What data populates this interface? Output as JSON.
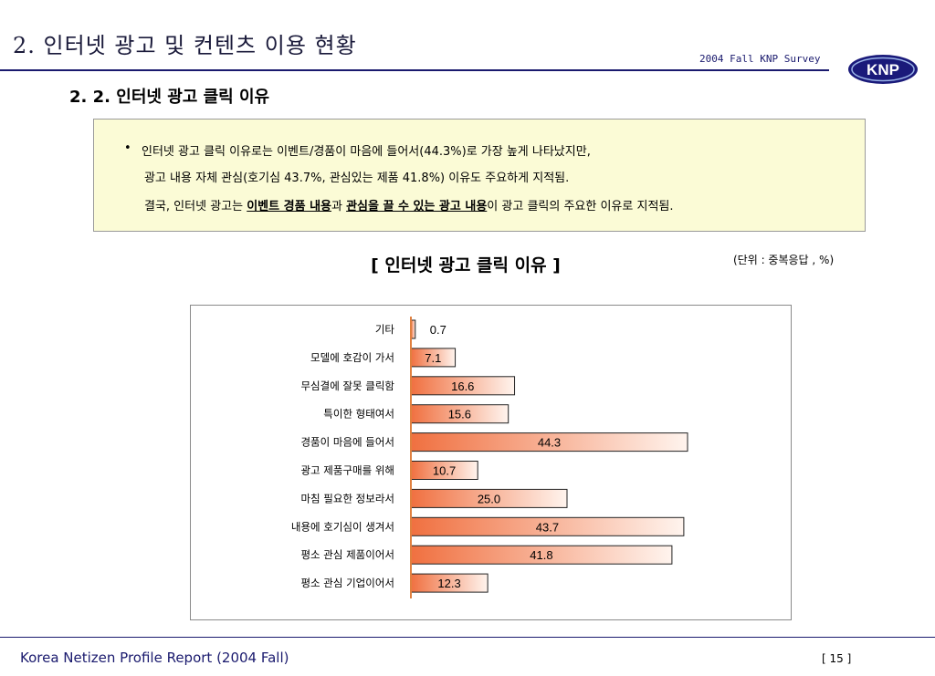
{
  "header": {
    "main_title": "2. 인터넷 광고 및 컨텐츠 이용 현황",
    "survey_label": "2004 Fall KNP Survey",
    "logo_text": "KNP"
  },
  "section_title": "2. 2.  인터넷 광고 클릭 이유",
  "summary": {
    "bullet": "•",
    "line1": "인터넷 광고 클릭 이유로는 이벤트/경품이 마음에 들어서(44.3%)로 가장 높게 나타났지만,",
    "line2": "광고 내용 자체 관심(호기심 43.7%, 관심있는 제품 41.8%) 이유도 주요하게 지적됨.",
    "line3_prefix": "결국, 인터넷 광고는 ",
    "line3_emph1": "이벤트 경품 내용",
    "line3_mid": "과 ",
    "line3_emph2": "관심을 끌 수 있는 광고 내용",
    "line3_suffix": "이 광고 클릭의 주요한 이유로 지적됨."
  },
  "chart_title": "[ 인터넷 광고 클릭 이유 ]",
  "unit_note": "(단위 : 중복응답 , %)",
  "chart_data": {
    "type": "bar",
    "orientation": "horizontal",
    "title": "[ 인터넷 광고 클릭 이유 ]",
    "unit": "(단위 : 중복응답 , %)",
    "categories": [
      "기타",
      "모델에 호감이 가서",
      "무심결에 잘못 클릭함",
      "특이한 형태여서",
      "경품이 마음에 들어서",
      "광고 제품구매를 위해",
      "마침 필요한 정보라서",
      "내용에 호기심이 생겨서",
      "평소 관심 제품이어서",
      "평소 관심 기업이어서"
    ],
    "values": [
      0.7,
      7.1,
      16.6,
      15.6,
      44.3,
      10.7,
      25.0,
      43.7,
      41.8,
      12.3
    ],
    "value_labels": [
      "0.7",
      "7.1",
      "16.6",
      "15.6",
      "44.3",
      "10.7",
      "25.0",
      "43.7",
      "41.8",
      "12.3"
    ],
    "xlim": [
      0,
      44.3
    ],
    "grid": false,
    "legend": "none",
    "colors": {
      "bar_start": "#f07040",
      "bar_end": "#fff4ee",
      "axis": "#e08040",
      "border": "#222222"
    }
  },
  "footer": {
    "report_title": "Korea Netizen Profile Report (2004 Fall)",
    "page_number": "[ 15 ]"
  }
}
